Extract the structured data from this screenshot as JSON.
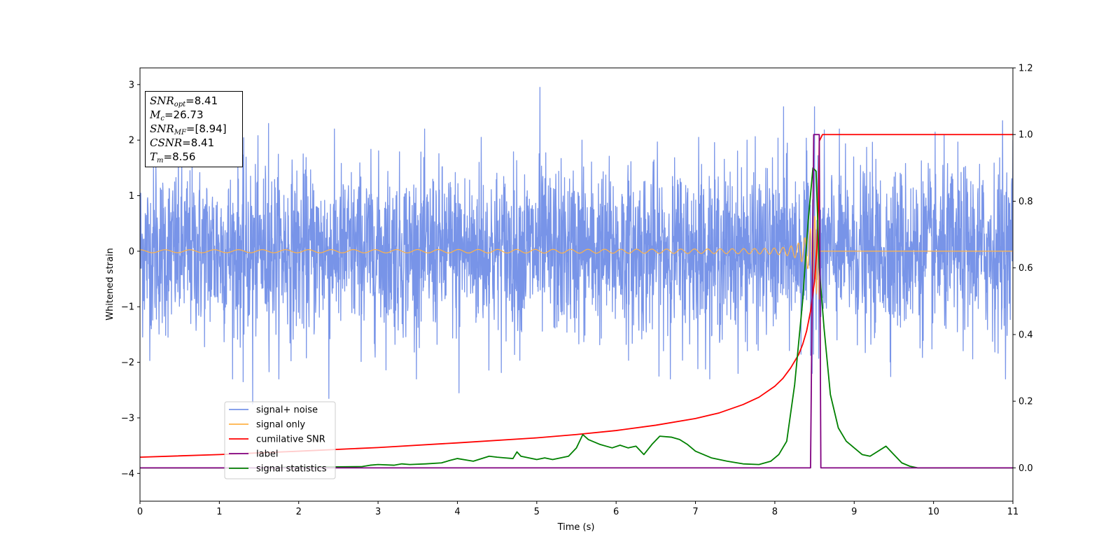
{
  "chart_data": {
    "type": "line",
    "title": "",
    "xlabel": "Time (s)",
    "ylabel": "Whitened strain",
    "y2label": "",
    "xlim": [
      0,
      11
    ],
    "ylim": [
      -4.5,
      3.3
    ],
    "y2lim": [
      -0.1,
      1.2
    ],
    "x_ticks": [
      0,
      1,
      2,
      3,
      4,
      5,
      6,
      7,
      8,
      9,
      10,
      11
    ],
    "y_ticks": [
      -4,
      -3,
      -2,
      -1,
      0,
      1,
      2,
      3
    ],
    "y_tick_labels": [
      "−4",
      "−3",
      "−2",
      "−1",
      "0",
      "1",
      "2",
      "3"
    ],
    "y2_ticks": [
      0.0,
      0.2,
      0.4,
      0.6,
      0.8,
      1.0,
      1.2
    ],
    "y2_tick_labels": [
      "0.0",
      "0.2",
      "0.4",
      "0.6",
      "0.8",
      "1.0",
      "1.2"
    ],
    "grid": false,
    "legend_position": "lower-left",
    "series": [
      {
        "name": "signal+ noise",
        "axis": "left",
        "color": "#7894e8",
        "style": "dense noise",
        "noise_std": 0.75,
        "peaks": [
          [
            0.2,
            1.6
          ],
          [
            1.42,
            -2.75
          ],
          [
            1.62,
            2.3
          ],
          [
            1.3,
            -2.35
          ],
          [
            2.38,
            -2.65
          ],
          [
            4.02,
            -2.55
          ],
          [
            4.3,
            2.05
          ],
          [
            5.04,
            2.95
          ],
          [
            5.57,
            2.0
          ],
          [
            7.04,
            2.05
          ],
          [
            7.65,
            2.0
          ],
          [
            8.11,
            2.6
          ],
          [
            8.5,
            2.6
          ],
          [
            8.47,
            -2.2
          ],
          [
            10.87,
            2.35
          ],
          [
            11.0,
            2.0
          ]
        ]
      },
      {
        "name": "signal only",
        "axis": "left",
        "color": "#ffb347",
        "style": "chirp",
        "merger_time": 8.56,
        "peak_amplitude": 1.0
      },
      {
        "name": "cumilative SNR",
        "axis": "right",
        "color": "#ff0000",
        "x": [
          0,
          1,
          2,
          3,
          4,
          5,
          5.5,
          6,
          6.5,
          7,
          7.3,
          7.6,
          7.8,
          8.0,
          8.1,
          8.2,
          8.3,
          8.35,
          8.4,
          8.45,
          8.5,
          8.53,
          8.55,
          8.56,
          8.6,
          11
        ],
        "values": [
          0.032,
          0.04,
          0.05,
          0.061,
          0.075,
          0.09,
          0.1,
          0.112,
          0.128,
          0.148,
          0.165,
          0.19,
          0.212,
          0.245,
          0.268,
          0.3,
          0.34,
          0.37,
          0.41,
          0.47,
          0.56,
          0.66,
          0.78,
          0.98,
          1.0,
          1.0
        ]
      },
      {
        "name": "label",
        "axis": "right",
        "color": "#800080",
        "x": [
          0,
          8.45,
          8.49,
          8.56,
          8.58,
          11
        ],
        "values": [
          0,
          0,
          1.0,
          1.0,
          0,
          0
        ]
      },
      {
        "name": "signal statistics",
        "axis": "right",
        "color": "#008000",
        "x": [
          0,
          0.5,
          1.0,
          1.5,
          2.0,
          2.5,
          2.8,
          2.9,
          3.0,
          3.2,
          3.3,
          3.4,
          3.6,
          3.8,
          3.9,
          4.0,
          4.2,
          4.4,
          4.5,
          4.6,
          4.7,
          4.75,
          4.8,
          4.9,
          5.0,
          5.1,
          5.2,
          5.3,
          5.4,
          5.5,
          5.58,
          5.65,
          5.8,
          5.95,
          6.05,
          6.15,
          6.25,
          6.35,
          6.45,
          6.55,
          6.7,
          6.8,
          6.9,
          7.0,
          7.1,
          7.2,
          7.4,
          7.6,
          7.8,
          7.95,
          8.05,
          8.15,
          8.25,
          8.35,
          8.42,
          8.48,
          8.52,
          8.56,
          8.62,
          8.7,
          8.8,
          8.9,
          9.0,
          9.1,
          9.2,
          9.3,
          9.4,
          9.5,
          9.6,
          9.7,
          9.8,
          10.0,
          10.3,
          10.6,
          11.0
        ],
        "values": [
          0.0,
          0.0,
          0.0,
          0.0,
          0.003,
          0.003,
          0.004,
          0.008,
          0.01,
          0.008,
          0.012,
          0.01,
          0.012,
          0.015,
          0.022,
          0.028,
          0.02,
          0.035,
          0.032,
          0.03,
          0.028,
          0.048,
          0.035,
          0.03,
          0.025,
          0.03,
          0.025,
          0.03,
          0.035,
          0.06,
          0.1,
          0.085,
          0.07,
          0.06,
          0.068,
          0.06,
          0.065,
          0.04,
          0.07,
          0.095,
          0.092,
          0.085,
          0.07,
          0.05,
          0.04,
          0.03,
          0.02,
          0.012,
          0.01,
          0.02,
          0.04,
          0.08,
          0.25,
          0.5,
          0.74,
          0.9,
          0.89,
          0.6,
          0.42,
          0.22,
          0.12,
          0.08,
          0.06,
          0.04,
          0.035,
          0.05,
          0.065,
          0.04,
          0.015,
          0.005,
          0.0,
          0.0,
          0.0,
          0.0,
          0.0
        ]
      }
    ],
    "annotation": {
      "snr_opt": "8.41",
      "mc": "26.73",
      "snr_mf": "[8.94]",
      "csnr": "8.41",
      "tm": "8.56"
    }
  }
}
